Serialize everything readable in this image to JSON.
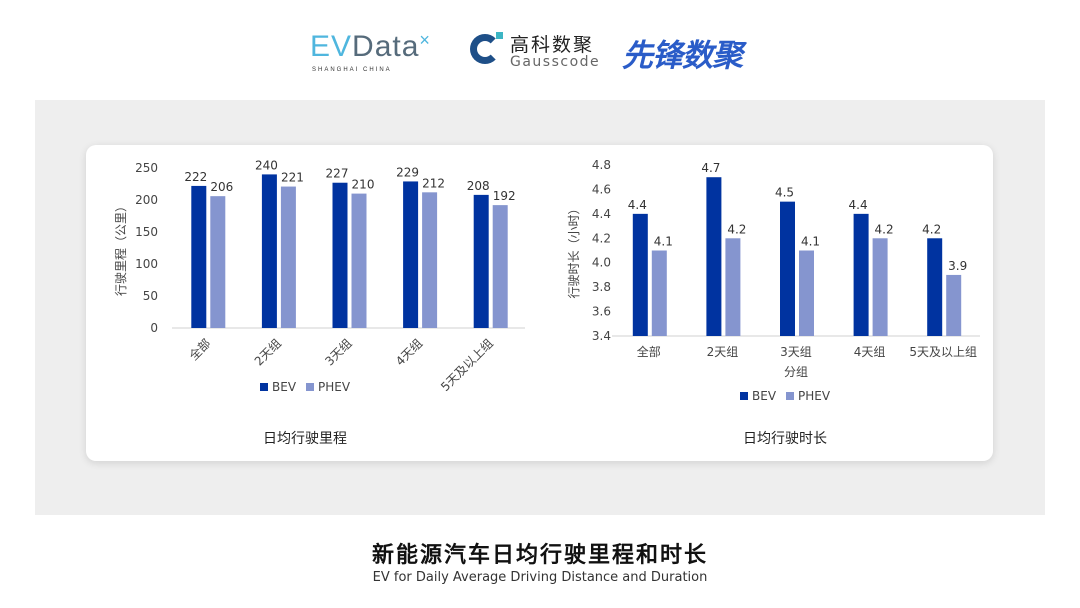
{
  "logos": {
    "evdata": {
      "text": "EVData",
      "sub": "SHANGHAI CHINA"
    },
    "gausscode": {
      "cn": "高科数聚",
      "en": "Gausscode"
    },
    "xianfeng": {
      "text": "先锋数聚"
    }
  },
  "colors": {
    "BEV": "#0033a0",
    "PHEV": "#8595cf",
    "panel": "#eeeeee"
  },
  "footer": {
    "title": "新能源汽车日均行驶里程和时长",
    "subtitle": "EV for Daily Average Driving Distance and Duration"
  },
  "chart_data": [
    {
      "type": "bar",
      "title": "日均行驶里程",
      "ylabel": "行驶里程（公里）",
      "xlabel": "",
      "ylim": [
        0,
        250
      ],
      "yticks": [
        "0",
        "50",
        "100",
        "150",
        "200",
        "250"
      ],
      "categories": [
        "全部",
        "2天组",
        "3天组",
        "4天组",
        "5天及以上组"
      ],
      "series": [
        {
          "name": "BEV",
          "values": [
            222,
            240,
            227,
            229,
            208
          ]
        },
        {
          "name": "PHEV",
          "values": [
            206,
            221,
            210,
            212,
            192
          ]
        }
      ],
      "legend": "bottom",
      "grid": false
    },
    {
      "type": "bar",
      "title": "日均行驶时长",
      "ylabel": "行驶时长（小时）",
      "xlabel": "分组",
      "ylim": [
        3.4,
        4.8
      ],
      "yticks": [
        "3.4",
        "3.6",
        "3.8",
        "4.0",
        "4.2",
        "4.4",
        "4.6",
        "4.8"
      ],
      "categories": [
        "全部",
        "2天组",
        "3天组",
        "4天组",
        "5天及以上组"
      ],
      "series": [
        {
          "name": "BEV",
          "values": [
            4.4,
            4.7,
            4.5,
            4.4,
            4.2
          ]
        },
        {
          "name": "PHEV",
          "values": [
            4.1,
            4.2,
            4.1,
            4.2,
            3.9
          ]
        }
      ],
      "legend": "bottom",
      "grid": false
    }
  ]
}
